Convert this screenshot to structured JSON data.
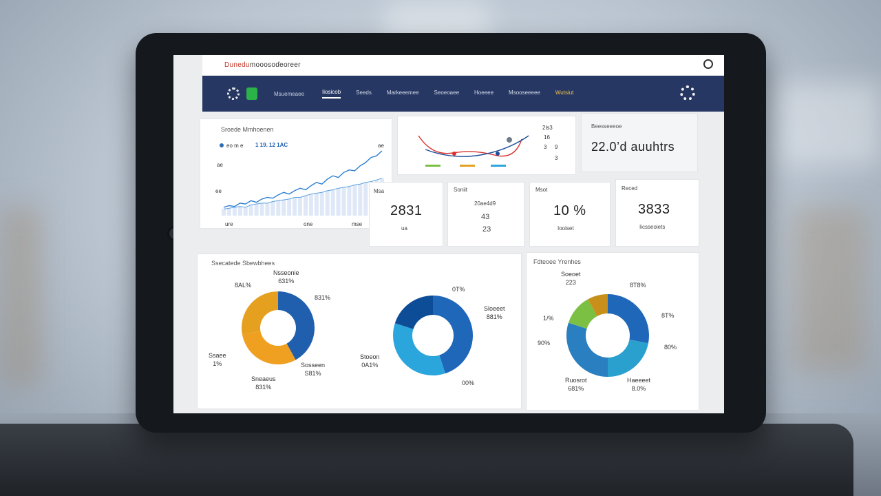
{
  "app": {
    "title_first": "Dunedu",
    "title_rest": "mooosoɗeoreer"
  },
  "nav": {
    "subtitle": "Msuemeaee",
    "items": [
      {
        "label": "Iiosicob",
        "active": true
      },
      {
        "label": "Seeds",
        "active": false
      },
      {
        "label": "Markeeemee",
        "active": false
      },
      {
        "label": "Seoeoaee",
        "active": false
      },
      {
        "label": "Hoeeee",
        "active": false
      },
      {
        "label": "Msooseeeee",
        "active": false
      },
      {
        "label": "Wutsiut",
        "active": false,
        "gold": true
      }
    ]
  },
  "line_card": {
    "title": "Sroede Mmhoenen",
    "legend": "eo m  e",
    "legend_values": "1 19. 12  1AC",
    "y_labels": [
      "ae",
      "ee"
    ],
    "x_labels": [
      "ure",
      "one",
      "mse"
    ],
    "right_label": "ae"
  },
  "trend_card": {
    "legend": [
      "2ls3",
      "16",
      "3"
    ],
    "right_labels": [
      "9",
      "3"
    ]
  },
  "summary_card": {
    "label": "Beesseeeoe",
    "value": "22.0’d auuhtrs"
  },
  "kpis": [
    {
      "label": "Msa",
      "value": "2831",
      "sub": "ua"
    },
    {
      "label": "Soniit",
      "value": "20ae4d9",
      "value2": "43",
      "sub": "23"
    },
    {
      "label": "Msot",
      "value": "10 %",
      "sub": "Iooiset"
    },
    {
      "label": "Reced",
      "value": "3833",
      "sub": "Iicsseoiets"
    }
  ],
  "donuts_card_left": {
    "title": "Ssecatede Sbewbhees",
    "d1": {
      "labels": [
        {
          "text": "Nsseonie\n631%"
        },
        {
          "text": "8AL%"
        },
        {
          "text": "Ssaee\n1%"
        },
        {
          "text": "Sneaeus\n831%"
        },
        {
          "text": "Sosseen\nS81%"
        },
        {
          "text": "831%"
        }
      ]
    },
    "d2": {
      "labels": [
        {
          "text": "0T%"
        },
        {
          "text": "Sloeeet\n881%"
        },
        {
          "text": "Stoeon\n0A1%"
        },
        {
          "text": "00%"
        }
      ]
    }
  },
  "donuts_card_right": {
    "title": "Fdteoee Yrenhes",
    "labels": [
      {
        "text": "Soeoet\n223"
      },
      {
        "text": "8T8%"
      },
      {
        "text": "8T%"
      },
      {
        "text": "1/%"
      },
      {
        "text": "90%"
      },
      {
        "text": "80%"
      },
      {
        "text": "Ruosrot\n681%"
      },
      {
        "text": "Haeeeet\n8.0%"
      }
    ]
  },
  "chart_data": [
    {
      "type": "line",
      "title": "Sroede Mmhoenen",
      "x": [
        1,
        2,
        3,
        4,
        5,
        6,
        7,
        8,
        9,
        10,
        11,
        12,
        13,
        14,
        15,
        16,
        17,
        18,
        19,
        20,
        21,
        22,
        23,
        24,
        25,
        26,
        27,
        28,
        29,
        30
      ],
      "series": [
        {
          "values": [
            10,
            12,
            11,
            15,
            14,
            18,
            16,
            20,
            22,
            21,
            25,
            28,
            26,
            30,
            33,
            31,
            36,
            40,
            38,
            44,
            48,
            46,
            52,
            55,
            54,
            60,
            64,
            70,
            72,
            78
          ]
        },
        {
          "values": [
            8,
            9,
            10,
            11,
            10,
            13,
            14,
            15,
            15,
            17,
            18,
            19,
            20,
            22,
            22,
            24,
            26,
            27,
            28,
            30,
            31,
            33,
            34,
            35,
            37,
            38,
            40,
            41,
            43,
            45
          ]
        }
      ]
    },
    {
      "type": "pie",
      "slices": [
        {
          "label": "Sneaeus",
          "value": 42
        },
        {
          "label": "Nsseonie",
          "value": 30
        },
        {
          "label": "Ssaee",
          "value": 28
        }
      ],
      "colors": [
        "#1f5fae",
        "#f0a020",
        "#e6a020"
      ]
    },
    {
      "type": "pie",
      "slices": [
        {
          "label": "Sloeeet",
          "value": 45
        },
        {
          "label": "Stoeon",
          "value": 35
        },
        {
          "label": "00%",
          "value": 20
        }
      ],
      "colors": [
        "#1f67b8",
        "#2ba6dc",
        "#0d4c96"
      ]
    },
    {
      "type": "pie",
      "slices": [
        {
          "label": "8T8%",
          "value": 28
        },
        {
          "label": "8T%",
          "value": 22
        },
        {
          "label": "Ruosrot",
          "value": 30
        },
        {
          "label": "Haeeeet",
          "value": 12
        },
        {
          "label": "223",
          "value": 8
        }
      ],
      "colors": [
        "#1f67b8",
        "#2aa0cf",
        "#2a7fc1",
        "#7cc043",
        "#c8901a"
      ]
    }
  ]
}
